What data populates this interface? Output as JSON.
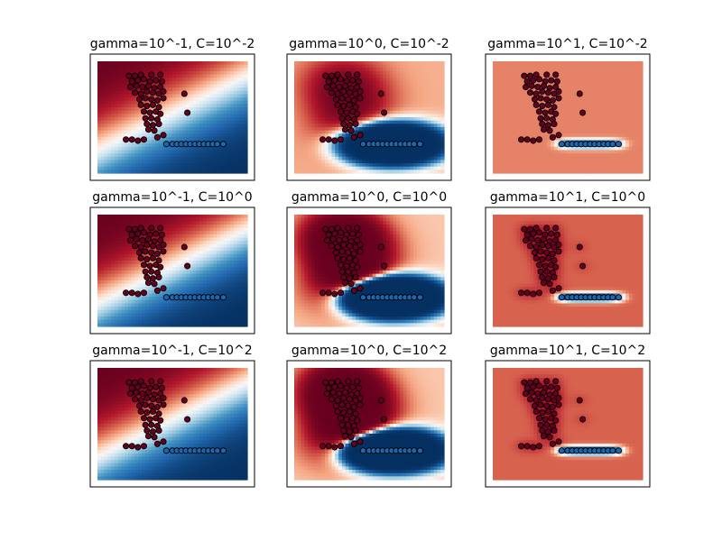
{
  "figure": {
    "background": "#ffffff",
    "colormap": "RdBu",
    "colors": {
      "class_red": "#67001f",
      "class_blue": "#053061",
      "frame": "#000000"
    }
  },
  "points": {
    "red": [
      [
        0.21,
        0.13
      ],
      [
        0.25,
        0.13
      ],
      [
        0.29,
        0.12
      ],
      [
        0.36,
        0.12
      ],
      [
        0.42,
        0.12
      ],
      [
        0.23,
        0.18
      ],
      [
        0.27,
        0.17
      ],
      [
        0.31,
        0.16
      ],
      [
        0.35,
        0.18
      ],
      [
        0.39,
        0.17
      ],
      [
        0.43,
        0.18
      ],
      [
        0.22,
        0.23
      ],
      [
        0.26,
        0.22
      ],
      [
        0.3,
        0.23
      ],
      [
        0.34,
        0.22
      ],
      [
        0.38,
        0.24
      ],
      [
        0.42,
        0.23
      ],
      [
        0.25,
        0.28
      ],
      [
        0.29,
        0.29
      ],
      [
        0.33,
        0.27
      ],
      [
        0.37,
        0.28
      ],
      [
        0.41,
        0.29
      ],
      [
        0.44,
        0.27
      ],
      [
        0.28,
        0.34
      ],
      [
        0.32,
        0.33
      ],
      [
        0.36,
        0.34
      ],
      [
        0.4,
        0.35
      ],
      [
        0.44,
        0.33
      ],
      [
        0.29,
        0.39
      ],
      [
        0.33,
        0.4
      ],
      [
        0.37,
        0.39
      ],
      [
        0.41,
        0.41
      ],
      [
        0.31,
        0.45
      ],
      [
        0.35,
        0.46
      ],
      [
        0.39,
        0.45
      ],
      [
        0.42,
        0.47
      ],
      [
        0.32,
        0.51
      ],
      [
        0.36,
        0.51
      ],
      [
        0.4,
        0.52
      ],
      [
        0.33,
        0.56
      ],
      [
        0.37,
        0.57
      ],
      [
        0.41,
        0.56
      ],
      [
        0.34,
        0.61
      ],
      [
        0.38,
        0.62
      ],
      [
        0.4,
        0.68
      ],
      [
        0.44,
        0.66
      ],
      [
        0.19,
        0.7
      ],
      [
        0.23,
        0.7
      ],
      [
        0.27,
        0.71
      ],
      [
        0.31,
        0.7
      ],
      [
        0.58,
        0.29
      ],
      [
        0.6,
        0.46
      ]
    ],
    "blue": [
      [
        0.46,
        0.74
      ],
      [
        0.5,
        0.74
      ],
      [
        0.53,
        0.74
      ],
      [
        0.56,
        0.74
      ],
      [
        0.59,
        0.74
      ],
      [
        0.62,
        0.74
      ],
      [
        0.65,
        0.74
      ],
      [
        0.68,
        0.74
      ],
      [
        0.71,
        0.74
      ],
      [
        0.74,
        0.74
      ],
      [
        0.77,
        0.74
      ],
      [
        0.8,
        0.74
      ],
      [
        0.84,
        0.74
      ]
    ]
  },
  "panels": [
    {
      "title": "gamma=10^-1, C=10^-2",
      "model": {
        "type": "linear",
        "bias": 0.02,
        "scale": 1.0,
        "gain": 2.4
      }
    },
    {
      "title": "gamma=10^0, C=10^-2",
      "model": {
        "type": "rbf",
        "bias": -0.22,
        "k": 20,
        "gain": 1.7,
        "pos_weight": 0.3,
        "neg_weight": 1.3
      }
    },
    {
      "title": "gamma=10^1, C=10^-2",
      "model": {
        "type": "rbf",
        "bias": -0.55,
        "k": 300,
        "gain": 1.0,
        "pos_weight": 0.0,
        "neg_weight": 1.5
      }
    },
    {
      "title": "gamma=10^-1, C=10^0",
      "model": {
        "type": "linear",
        "bias": 0.02,
        "scale": 1.0,
        "gain": 2.6
      }
    },
    {
      "title": "gamma=10^0, C=10^0",
      "model": {
        "type": "rbf",
        "bias": -0.14,
        "k": 22,
        "gain": 2.0,
        "pos_weight": 0.7,
        "neg_weight": 1.4
      }
    },
    {
      "title": "gamma=10^1, C=10^0",
      "model": {
        "type": "rbf",
        "bias": -0.68,
        "k": 300,
        "gain": 1.0,
        "pos_weight": 1.0,
        "neg_weight": 1.9
      }
    },
    {
      "title": "gamma=10^-1, C=10^2",
      "model": {
        "type": "linear",
        "bias": 0.02,
        "scale": 1.0,
        "gain": 2.6
      }
    },
    {
      "title": "gamma=10^0, C=10^2",
      "model": {
        "type": "rbf",
        "bias": -0.14,
        "k": 22,
        "gain": 2.0,
        "pos_weight": 0.8,
        "neg_weight": 1.4
      }
    },
    {
      "title": "gamma=10^1, C=10^2",
      "model": {
        "type": "rbf",
        "bias": -0.68,
        "k": 300,
        "gain": 1.0,
        "pos_weight": 1.0,
        "neg_weight": 1.9
      }
    }
  ],
  "chart_data": [
    {
      "type": "heatmap",
      "title": "gamma=10^-1, C=10^-2",
      "xlabel": "",
      "ylabel": "",
      "grid": false,
      "legend": "none"
    },
    {
      "type": "heatmap",
      "title": "gamma=10^0, C=10^-2",
      "xlabel": "",
      "ylabel": "",
      "grid": false,
      "legend": "none"
    },
    {
      "type": "heatmap",
      "title": "gamma=10^1, C=10^-2",
      "xlabel": "",
      "ylabel": "",
      "grid": false,
      "legend": "none"
    },
    {
      "type": "heatmap",
      "title": "gamma=10^-1, C=10^0",
      "xlabel": "",
      "ylabel": "",
      "grid": false,
      "legend": "none"
    },
    {
      "type": "heatmap",
      "title": "gamma=10^0, C=10^0",
      "xlabel": "",
      "ylabel": "",
      "grid": false,
      "legend": "none"
    },
    {
      "type": "heatmap",
      "title": "gamma=10^1, C=10^0",
      "xlabel": "",
      "ylabel": "",
      "grid": false,
      "legend": "none"
    },
    {
      "type": "heatmap",
      "title": "gamma=10^-1, C=10^2",
      "xlabel": "",
      "ylabel": "",
      "grid": false,
      "legend": "none"
    },
    {
      "type": "heatmap",
      "title": "gamma=10^0, C=10^2",
      "xlabel": "",
      "ylabel": "",
      "grid": false,
      "legend": "none"
    },
    {
      "type": "heatmap",
      "title": "gamma=10^1, C=10^2",
      "xlabel": "",
      "ylabel": "",
      "grid": false,
      "legend": "none"
    }
  ]
}
